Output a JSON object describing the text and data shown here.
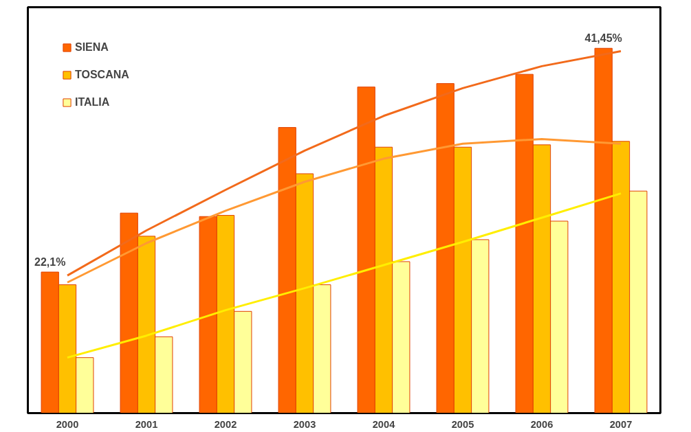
{
  "chart_data": {
    "type": "bar",
    "categories": [
      "2000",
      "2001",
      "2002",
      "2003",
      "2004",
      "2005",
      "2006",
      "2007"
    ],
    "ylim": [
      9.9,
      45
    ],
    "tick_labels": "x",
    "legend": "top left",
    "grid": false,
    "series": [
      {
        "name": "SIENA",
        "color": "#ff6600",
        "values": [
          22.1,
          27.2,
          26.9,
          34.6,
          38.1,
          38.4,
          39.2,
          41.45
        ],
        "value_labels": [
          "22,1%",
          null,
          null,
          null,
          null,
          null,
          null,
          "41,45%"
        ]
      },
      {
        "name": "TOSCANA",
        "color": "#ffc000",
        "values": [
          21.0,
          25.2,
          27.0,
          30.6,
          32.9,
          32.9,
          33.1,
          33.4
        ]
      },
      {
        "name": "ITALIA",
        "color": "#ffff99",
        "values": [
          14.7,
          16.5,
          18.7,
          21.0,
          23.0,
          24.9,
          26.5,
          29.1
        ]
      },
      {
        "type": "line",
        "color": "#f26a1b",
        "values": [
          21.8,
          25.7,
          29.2,
          32.6,
          35.6,
          38.0,
          39.9,
          41.2
        ]
      },
      {
        "type": "line",
        "color": "#ff9933",
        "values": [
          21.2,
          24.6,
          27.4,
          29.9,
          31.9,
          33.2,
          33.6,
          33.2
        ]
      },
      {
        "type": "line",
        "color": "#ffee00",
        "values": [
          14.7,
          16.6,
          18.8,
          20.7,
          22.7,
          24.7,
          26.8,
          28.9
        ]
      }
    ]
  }
}
